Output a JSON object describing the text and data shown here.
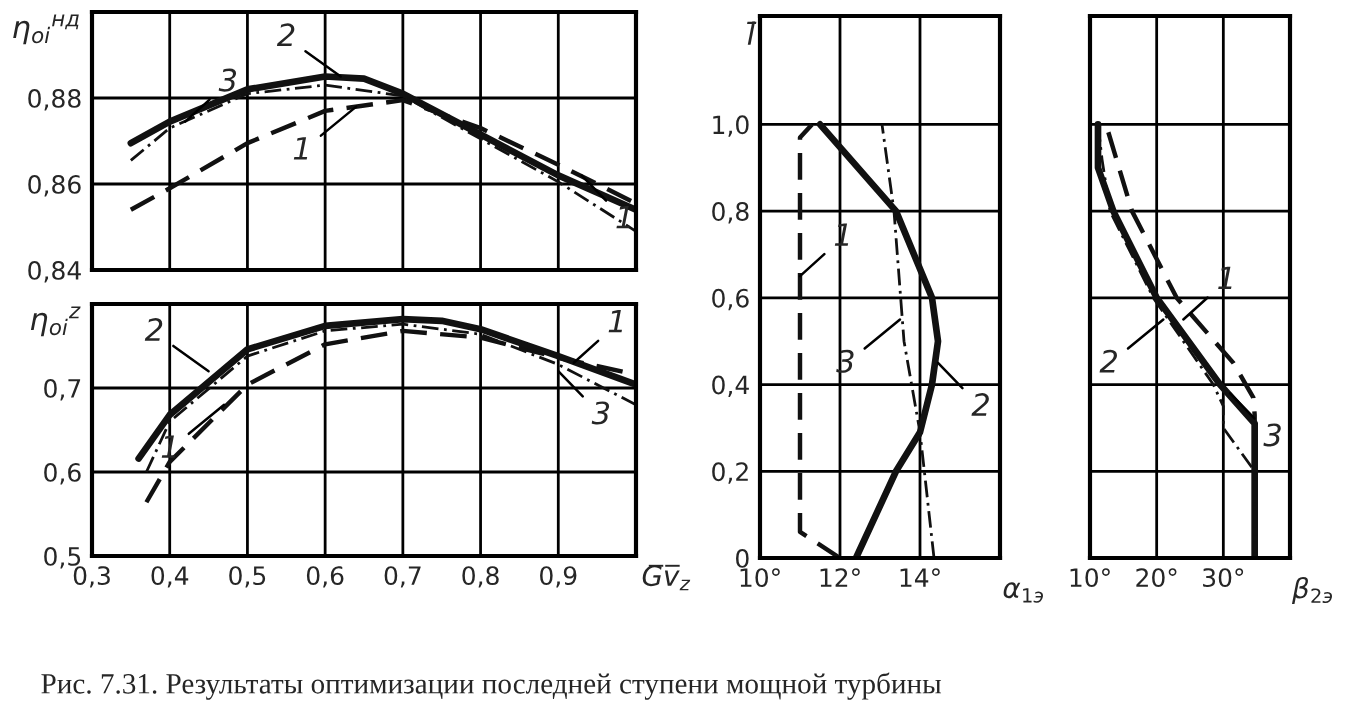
{
  "chart_data": [
    {
      "type": "line",
      "ylabel": "η$_{oi}$$^{нд}$",
      "xlim": [
        0.3,
        1.0
      ],
      "ylim": [
        0.84,
        0.9
      ],
      "grid": true,
      "tick_labels": "y",
      "xticks": [
        {
          "value": 0.3,
          "label": null
        },
        {
          "value": 0.4,
          "label": null
        },
        {
          "value": 0.5,
          "label": null
        },
        {
          "value": 0.6,
          "label": null
        },
        {
          "value": 0.7,
          "label": null
        },
        {
          "value": 0.8,
          "label": null
        },
        {
          "value": 0.9,
          "label": null
        }
      ],
      "yticks": [
        {
          "value": 0.84,
          "label": "0,84"
        },
        {
          "value": 0.86,
          "label": "0,86"
        },
        {
          "value": 0.88,
          "label": "0,88"
        }
      ],
      "series": [
        {
          "color": "#111111",
          "line_style": "dashed",
          "x": [
            0.35,
            0.4,
            0.5,
            0.6,
            0.7,
            0.8,
            0.9,
            1.0
          ],
          "values": [
            0.854,
            0.859,
            0.8695,
            0.877,
            0.8795,
            0.873,
            0.8645,
            0.8555
          ]
        },
        {
          "color": "#111111",
          "line_style": "solid",
          "x": [
            0.35,
            0.4,
            0.5,
            0.6,
            0.65,
            0.7,
            0.8,
            0.9,
            1.0
          ],
          "values": [
            0.8695,
            0.8745,
            0.882,
            0.885,
            0.8845,
            0.881,
            0.8715,
            0.862,
            0.854
          ]
        },
        {
          "color": "#111111",
          "line_style": "dotted",
          "x": [
            0.35,
            0.4,
            0.5,
            0.6,
            0.7,
            0.8,
            0.9,
            1.0
          ],
          "values": [
            0.8655,
            0.873,
            0.881,
            0.883,
            0.8805,
            0.8705,
            0.8605,
            0.849
          ]
        }
      ],
      "annotations": [
        {
          "text": "3",
          "x": 0.42,
          "y": 0.8745
        },
        {
          "text": "1",
          "x": 0.64,
          "y": 0.878
        },
        {
          "text": "1",
          "x": 0.93,
          "y": 0.862
        },
        {
          "text": "2",
          "x": 0.62,
          "y": 0.885
        }
      ]
    },
    {
      "type": "line",
      "ylabel": "η$_{oi}$$^{z}$",
      "xlabel": "G̅v̅$_{z}$",
      "xlim": [
        0.3,
        1.0
      ],
      "ylim": [
        0.5,
        0.8
      ],
      "grid": true,
      "xticks": [
        {
          "value": 0.3,
          "label": "0,3"
        },
        {
          "value": 0.4,
          "label": "0,4"
        },
        {
          "value": 0.5,
          "label": "0,5"
        },
        {
          "value": 0.6,
          "label": "0,6"
        },
        {
          "value": 0.7,
          "label": "0,7"
        },
        {
          "value": 0.8,
          "label": "0,8"
        },
        {
          "value": 0.9,
          "label": "0,9"
        }
      ],
      "yticks": [
        {
          "value": 0.5,
          "label": "0,5"
        },
        {
          "value": 0.6,
          "label": "0,6"
        },
        {
          "value": 0.7,
          "label": "0,7"
        }
      ],
      "series": [
        {
          "color": "#111111",
          "line_style": "dashed",
          "x": [
            0.37,
            0.4,
            0.5,
            0.6,
            0.7,
            0.8,
            0.9,
            1.0
          ],
          "values": [
            0.564,
            0.612,
            0.704,
            0.752,
            0.768,
            0.76,
            0.736,
            0.716
          ]
        },
        {
          "color": "#111111",
          "line_style": "solid",
          "x": [
            0.36,
            0.4,
            0.5,
            0.6,
            0.7,
            0.75,
            0.8,
            0.9,
            1.0
          ],
          "values": [
            0.616,
            0.668,
            0.746,
            0.774,
            0.782,
            0.78,
            0.77,
            0.738,
            0.704
          ]
        },
        {
          "color": "#111111",
          "line_style": "dotted",
          "x": [
            0.37,
            0.4,
            0.5,
            0.6,
            0.7,
            0.8,
            0.9,
            1.0
          ],
          "values": [
            0.6,
            0.66,
            0.738,
            0.768,
            0.776,
            0.764,
            0.728,
            0.68
          ]
        }
      ],
      "annotations": [
        {
          "text": "1",
          "x": 0.92,
          "y": 0.73
        },
        {
          "text": "1",
          "x": 0.47,
          "y": 0.68
        },
        {
          "text": "3",
          "x": 0.9,
          "y": 0.72
        },
        {
          "text": "2",
          "x": 0.45,
          "y": 0.72
        }
      ]
    },
    {
      "type": "line",
      "ylabel": "l̄",
      "xlabel": "α$_{1э}$",
      "xlim": [
        10,
        16
      ],
      "ylim": [
        0,
        1.25
      ],
      "grid": true,
      "xticks": [
        {
          "value": 10,
          "label": "10°"
        },
        {
          "value": 12,
          "label": "12°"
        },
        {
          "value": 14,
          "label": "14°"
        }
      ],
      "yticks": [
        {
          "value": 0,
          "label": "0"
        },
        {
          "value": 0.2,
          "label": "0,2"
        },
        {
          "value": 0.4,
          "label": "0,4"
        },
        {
          "value": 0.6,
          "label": "0,6"
        },
        {
          "value": 0.8,
          "label": "0,8"
        },
        {
          "value": 1.0,
          "label": "1,0"
        }
      ],
      "series": [
        {
          "color": "#111111",
          "line_style": "dashed",
          "x": [
            12.0,
            11.0,
            11.0,
            11.3
          ],
          "values": [
            0,
            0.06,
            0.97,
            1.0
          ]
        },
        {
          "color": "#111111",
          "line_style": "solid",
          "x": [
            12.4,
            13.4,
            14.0,
            14.3,
            14.45,
            14.3,
            13.4,
            11.5
          ],
          "values": [
            0,
            0.2,
            0.29,
            0.4,
            0.5,
            0.6,
            0.8,
            1.0
          ]
        },
        {
          "color": "#111111",
          "line_style": "dotted",
          "x": [
            14.35,
            14.0,
            13.6,
            13.35,
            13.05
          ],
          "values": [
            0,
            0.29,
            0.5,
            0.8,
            1.0
          ]
        }
      ],
      "annotations": [
        {
          "text": "1",
          "x": 11.0,
          "y": 0.65
        },
        {
          "text": "3",
          "x": 13.5,
          "y": 0.55
        },
        {
          "text": "2",
          "x": 14.45,
          "y": 0.45
        }
      ]
    },
    {
      "type": "line",
      "xlabel": "β$_{2э}$",
      "xlim": [
        10,
        40
      ],
      "ylim": [
        0,
        1.25
      ],
      "grid": true,
      "tick_labels": "x",
      "xticks": [
        {
          "value": 10,
          "label": "10°"
        },
        {
          "value": 20,
          "label": "20°"
        },
        {
          "value": 30,
          "label": "30°"
        }
      ],
      "yticks": [
        {
          "value": 0,
          "label": null
        },
        {
          "value": 0.2,
          "label": null
        },
        {
          "value": 0.4,
          "label": null
        },
        {
          "value": 0.6,
          "label": null
        },
        {
          "value": 0.8,
          "label": null
        },
        {
          "value": 1.0,
          "label": null
        }
      ],
      "series": [
        {
          "color": "#111111",
          "line_style": "dashed",
          "x": [
            34.7,
            34.7,
            34.5,
            31.5,
            23,
            16.3,
            12.4
          ],
          "values": [
            0,
            0.33,
            0.37,
            0.45,
            0.6,
            0.8,
            1.0
          ]
        },
        {
          "color": "#111111",
          "line_style": "solid",
          "x": [
            34.7,
            34.7,
            29.5,
            20,
            13.5,
            11.2,
            11.2
          ],
          "values": [
            0,
            0.31,
            0.4,
            0.6,
            0.8,
            0.9,
            1.0
          ]
        },
        {
          "color": "#111111",
          "line_style": "dotted",
          "x": [
            34.7,
            34.7,
            30,
            30,
            28.5,
            19.5,
            13,
            11.8,
            11.2
          ],
          "values": [
            0,
            0.2,
            0.3,
            0.35,
            0.4,
            0.6,
            0.8,
            0.92,
            1.0
          ]
        }
      ],
      "annotations": [
        {
          "text": "1",
          "x": 24,
          "y": 0.55
        },
        {
          "text": "2",
          "x": 21,
          "y": 0.55
        },
        {
          "text": "3",
          "x": 31,
          "y": 0.38
        },
        "Рис. 7.31. Результаты оптимизации последней ступени мощной турбины"
      ]
    }
  ]
}
